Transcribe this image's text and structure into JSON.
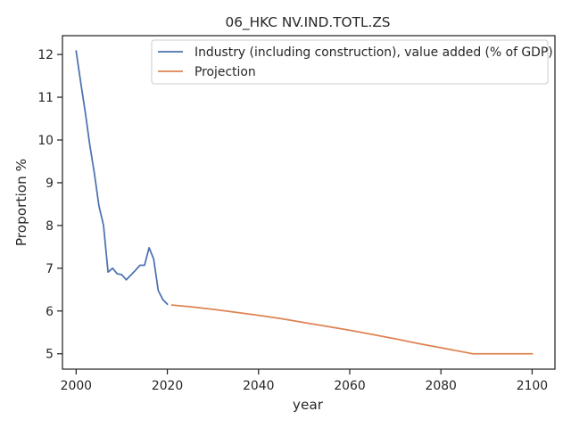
{
  "chart_data": {
    "type": "line",
    "title": "06_HKC NV.IND.TOTL.ZS",
    "xlabel": "year",
    "ylabel": "Proportion %",
    "xlim": [
      1997,
      2105
    ],
    "ylim": [
      4.64,
      12.44
    ],
    "xticks": [
      2000,
      2020,
      2040,
      2060,
      2080,
      2100
    ],
    "yticks": [
      5,
      6,
      7,
      8,
      9,
      10,
      11,
      12
    ],
    "grid": false,
    "legend_position": "top-right",
    "series": [
      {
        "name": "Industry (including construction), value added (% of GDP)",
        "color": "#4c72b0",
        "x": [
          2000,
          2001,
          2002,
          2003,
          2004,
          2005,
          2006,
          2007,
          2008,
          2009,
          2010,
          2011,
          2012,
          2013,
          2014,
          2015,
          2016,
          2017,
          2018,
          2019,
          2020
        ],
        "y": [
          12.08,
          11.35,
          10.65,
          9.88,
          9.22,
          8.46,
          8.01,
          6.91,
          7.0,
          6.87,
          6.85,
          6.73,
          6.84,
          6.95,
          7.07,
          7.07,
          7.48,
          7.22,
          6.48,
          6.27,
          6.16
        ]
      },
      {
        "name": "Projection",
        "color": "#dd8452",
        "x": [
          2021,
          2025,
          2030,
          2035,
          2040,
          2045,
          2050,
          2055,
          2060,
          2065,
          2070,
          2075,
          2080,
          2085,
          2087,
          2090,
          2095,
          2100
        ],
        "y": [
          6.14,
          6.1,
          6.04,
          5.97,
          5.9,
          5.82,
          5.73,
          5.64,
          5.55,
          5.45,
          5.35,
          5.24,
          5.14,
          5.04,
          5.0,
          5.0,
          5.0,
          5.0
        ]
      }
    ]
  }
}
